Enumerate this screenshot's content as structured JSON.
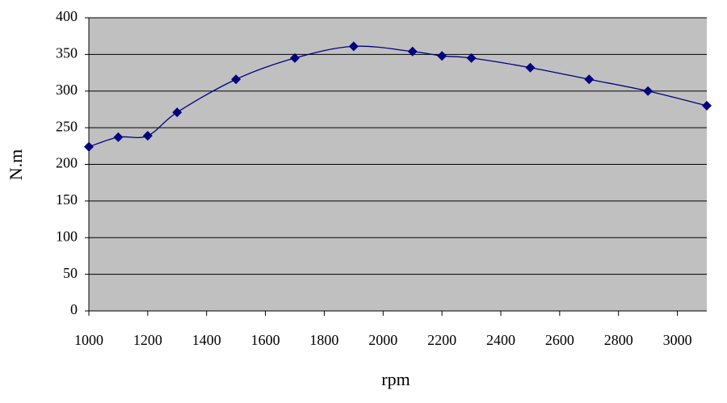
{
  "chart_data": {
    "type": "line",
    "x_label": "rpm",
    "y_label": "N.m",
    "x": [
      1000,
      1100,
      1200,
      1300,
      1500,
      1700,
      1900,
      2100,
      2200,
      2300,
      2500,
      2700,
      2900,
      3100
    ],
    "series": [
      {
        "color": "#000080",
        "values": [
          224,
          237,
          239,
          271,
          316,
          345,
          361,
          354,
          348,
          345,
          332,
          316,
          300,
          280
        ]
      }
    ],
    "xlim": [
      1000,
      3100
    ],
    "xticks": [
      1000,
      1200,
      1400,
      1600,
      1800,
      2000,
      2200,
      2400,
      2600,
      2800,
      3000
    ],
    "ylim": [
      0,
      400
    ],
    "yticks": [
      0,
      50,
      100,
      150,
      200,
      250,
      300,
      350,
      400
    ],
    "grid": true
  }
}
